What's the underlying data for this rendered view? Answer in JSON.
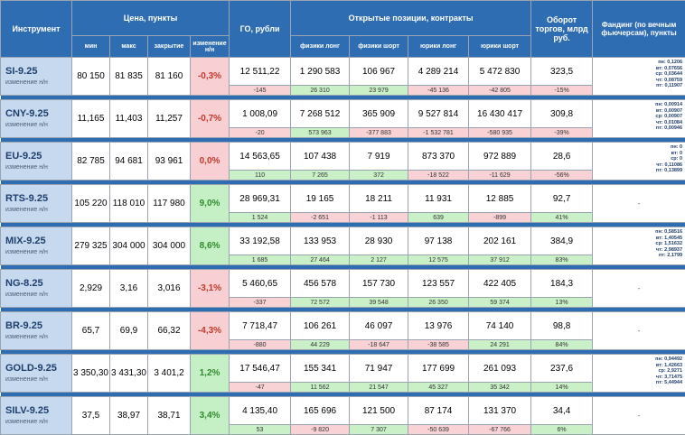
{
  "headers": {
    "instrument": "Инструмент",
    "price": "Цена, пункты",
    "go": "ГО, рубли",
    "open_positions": "Открытые позиции, контракты",
    "turnover": "Оборот торгов, млрд руб.",
    "funding": "Фандинг (по вечным фьючерсам), пункты",
    "min": "мин",
    "max": "макс",
    "close": "закрытие",
    "change": "изменение н/н",
    "phys_long": "физики лонг",
    "phys_short": "физики шорт",
    "jur_long": "юрики лонг",
    "jur_short": "юрики шорт"
  },
  "rows": [
    {
      "ticker": "SI-9.25",
      "sub": "изменение н/н",
      "min": "80 150",
      "max": "81 835",
      "close": "81 160",
      "change": "-0,3%",
      "change_sign": "neg",
      "go": "12 511,22",
      "go_d": "-145",
      "go_s": "neg",
      "pl": "1 290 583",
      "pl_d": "26 310",
      "pl_s": "pos",
      "ps": "106 967",
      "ps_d": "23 979",
      "ps_s": "pos",
      "jl": "4 289 214",
      "jl_d": "-45 136",
      "jl_s": "neg",
      "js": "5 472 830",
      "js_d": "-42 805",
      "js_s": "neg",
      "turn": "323,5",
      "turn_d": "-15%",
      "turn_s": "neg",
      "funding": [
        "пн: 0,1206",
        "вт: 0,07656",
        "ср: 0,03644",
        "чт: 0,08759",
        "пт: 0,11907"
      ]
    },
    {
      "ticker": "CNY-9.25",
      "sub": "изменение н/н",
      "min": "11,165",
      "max": "11,403",
      "close": "11,257",
      "change": "-0,7%",
      "change_sign": "neg",
      "go": "1 008,09",
      "go_d": "-20",
      "go_s": "neg",
      "pl": "7 268 512",
      "pl_d": "573 963",
      "pl_s": "pos",
      "ps": "365 909",
      "ps_d": "-377 883",
      "ps_s": "neg",
      "jl": "9 527 814",
      "jl_d": "-1 532 781",
      "jl_s": "neg",
      "js": "16 430 417",
      "js_d": "-580 935",
      "js_s": "neg",
      "turn": "309,8",
      "turn_d": "-39%",
      "turn_s": "neg",
      "funding": [
        "пн: 0,00914",
        "вт: 0,00907",
        "ср: 0,00907",
        "чт: 0,01084",
        "пт: 0,00946"
      ]
    },
    {
      "ticker": "EU-9.25",
      "sub": "изменение н/н",
      "min": "82 785",
      "max": "94 681",
      "close": "93 961",
      "change": "0,0%",
      "change_sign": "neg",
      "go": "14 563,65",
      "go_d": "110",
      "go_s": "pos",
      "pl": "107 438",
      "pl_d": "7 265",
      "pl_s": "pos",
      "ps": "7 919",
      "ps_d": "372",
      "ps_s": "pos",
      "jl": "873 370",
      "jl_d": "-18 522",
      "jl_s": "neg",
      "js": "972 889",
      "js_d": "-11 629",
      "js_s": "neg",
      "turn": "28,6",
      "turn_d": "-56%",
      "turn_s": "neg",
      "funding": [
        "пн: 0",
        "вт: 0",
        "ср: 0",
        "чт: 0,11086",
        "пт: 0,13899"
      ]
    },
    {
      "ticker": "RTS-9.25",
      "sub": "изменение н/н",
      "min": "105 220",
      "max": "118 010",
      "close": "117 980",
      "change": "9,0%",
      "change_sign": "pos",
      "go": "28 969,31",
      "go_d": "1 524",
      "go_s": "pos",
      "pl": "19 165",
      "pl_d": "-2 651",
      "pl_s": "neg",
      "ps": "18 211",
      "ps_d": "-1 113",
      "ps_s": "neg",
      "jl": "11 931",
      "jl_d": "639",
      "jl_s": "pos",
      "js": "12 885",
      "js_d": "-899",
      "js_s": "neg",
      "turn": "92,7",
      "turn_d": "41%",
      "turn_s": "pos",
      "funding_dash": "-"
    },
    {
      "ticker": "MIX-9.25",
      "sub": "изменение н/н",
      "min": "279 325",
      "max": "304 000",
      "close": "304 000",
      "change": "8,6%",
      "change_sign": "pos",
      "go": "33 192,58",
      "go_d": "1 685",
      "go_s": "pos",
      "pl": "133 953",
      "pl_d": "27 464",
      "pl_s": "pos",
      "ps": "28 930",
      "ps_d": "2 127",
      "ps_s": "pos",
      "jl": "97 138",
      "jl_d": "12 575",
      "jl_s": "pos",
      "js": "202 161",
      "js_d": "37 912",
      "js_s": "pos",
      "turn": "384,9",
      "turn_d": "83%",
      "turn_s": "pos",
      "funding": [
        "пн: 0,58516",
        "вт: 1,40545",
        "ср: 1,51632",
        "чт: 2,98937",
        "пт: 2,1799"
      ]
    },
    {
      "ticker": "NG-8.25",
      "sub": "изменение н/н",
      "min": "2,929",
      "max": "3,16",
      "close": "3,016",
      "change": "-3,1%",
      "change_sign": "neg",
      "go": "5 460,65",
      "go_d": "-337",
      "go_s": "neg",
      "pl": "456 578",
      "pl_d": "72 572",
      "pl_s": "pos",
      "ps": "157 730",
      "ps_d": "39 548",
      "ps_s": "pos",
      "jl": "123 557",
      "jl_d": "26 350",
      "jl_s": "pos",
      "js": "422 405",
      "js_d": "59 374",
      "js_s": "pos",
      "turn": "184,3",
      "turn_d": "13%",
      "turn_s": "pos",
      "funding_dash": "-"
    },
    {
      "ticker": "BR-9.25",
      "sub": "изменение н/н",
      "min": "65,7",
      "max": "69,9",
      "close": "66,32",
      "change": "-4,3%",
      "change_sign": "neg",
      "go": "7 718,47",
      "go_d": "-880",
      "go_s": "neg",
      "pl": "106 261",
      "pl_d": "44 229",
      "pl_s": "pos",
      "ps": "46 097",
      "ps_d": "-18 647",
      "ps_s": "neg",
      "jl": "13 976",
      "jl_d": "-38 585",
      "jl_s": "neg",
      "js": "74 140",
      "js_d": "24 291",
      "js_s": "pos",
      "turn": "98,8",
      "turn_d": "84%",
      "turn_s": "pos",
      "funding_dash": "-"
    },
    {
      "ticker": "GOLD-9.25",
      "sub": "изменение н/н",
      "min": "3 350,30",
      "max": "3 431,30",
      "close": "3 401,2",
      "change": "1,2%",
      "change_sign": "pos",
      "go": "17 546,47",
      "go_d": "-47",
      "go_s": "neg",
      "pl": "155 341",
      "pl_d": "11 562",
      "pl_s": "pos",
      "ps": "71 947",
      "ps_d": "21 547",
      "ps_s": "pos",
      "jl": "177 699",
      "jl_d": "45 327",
      "jl_s": "pos",
      "js": "261 093",
      "js_d": "35 342",
      "js_s": "pos",
      "turn": "237,6",
      "turn_d": "14%",
      "turn_s": "pos",
      "funding": [
        "пн: 0,94492",
        "вт: 1,42663",
        "ср: 2,9271",
        "чт: 3,71475",
        "пт: 5,44944"
      ]
    },
    {
      "ticker": "SILV-9.25",
      "sub": "изменение н/н",
      "min": "37,5",
      "max": "38,97",
      "close": "38,71",
      "change": "3,4%",
      "change_sign": "pos",
      "go": "4 135,40",
      "go_d": "53",
      "go_s": "pos",
      "pl": "165 696",
      "pl_d": "-9 820",
      "pl_s": "neg",
      "ps": "121 500",
      "ps_d": "7 307",
      "ps_s": "pos",
      "jl": "87 174",
      "jl_d": "-50 639",
      "jl_s": "neg",
      "js": "131 370",
      "js_d": "-67 766",
      "js_s": "neg",
      "turn": "34,4",
      "turn_d": "6%",
      "turn_s": "pos",
      "funding_dash": "-"
    }
  ]
}
